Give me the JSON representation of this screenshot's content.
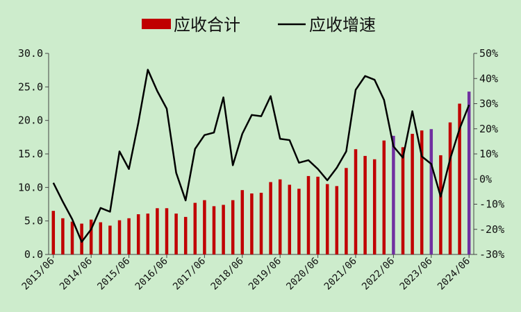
{
  "legend": {
    "bar_series": "应收合计",
    "line_series": "应收增速"
  },
  "colors": {
    "background": "#cdeccc",
    "bar": "#c00000",
    "bar_highlight": "#7030a0",
    "line": "#000000",
    "axis": "#444444"
  },
  "chart_data": {
    "type": "bar",
    "title": "",
    "xlabel": "",
    "ylabel": "",
    "ylim": [
      0,
      30
    ],
    "y_ticks": [
      "0.0",
      "5.0",
      "10.0",
      "15.0",
      "20.0",
      "25.0",
      "30.0"
    ],
    "y2lim": [
      -30,
      50
    ],
    "y2_ticks": [
      "-30%",
      "-20%",
      "-10%",
      "0%",
      "10%",
      "20%",
      "30%",
      "40%",
      "50%"
    ],
    "legend_position": "top-center",
    "grid": false,
    "x_tick_labels": [
      "2013/06",
      "2014/06",
      "2015/06",
      "2016/06",
      "2017/06",
      "2018/06",
      "2019/06",
      "2020/06",
      "2021/06",
      "2022/06",
      "2023/06",
      "2024/06"
    ],
    "categories": [
      "2013/06",
      "2013/09",
      "2013/12",
      "2014/03",
      "2014/06",
      "2014/09",
      "2014/12",
      "2015/03",
      "2015/06",
      "2015/09",
      "2015/12",
      "2016/03",
      "2016/06",
      "2016/09",
      "2016/12",
      "2017/03",
      "2017/06",
      "2017/09",
      "2017/12",
      "2018/03",
      "2018/06",
      "2018/09",
      "2018/12",
      "2019/03",
      "2019/06",
      "2019/09",
      "2019/12",
      "2020/03",
      "2020/06",
      "2020/09",
      "2020/12",
      "2021/03",
      "2021/06",
      "2021/09",
      "2021/12",
      "2022/03",
      "2022/06",
      "2022/09",
      "2022/12",
      "2023/03",
      "2023/06",
      "2023/09",
      "2023/12",
      "2024/03",
      "2024/06"
    ],
    "highlight_categories": [
      "2022/06",
      "2023/06",
      "2024/06"
    ],
    "series": [
      {
        "name": "应收合计",
        "type": "bar",
        "axis": "left",
        "values": [
          6.5,
          5.4,
          4.9,
          4.6,
          5.2,
          4.8,
          4.3,
          5.1,
          5.4,
          6.0,
          6.1,
          6.9,
          6.9,
          6.1,
          5.6,
          7.7,
          8.1,
          7.2,
          7.4,
          8.1,
          9.6,
          9.1,
          9.2,
          10.8,
          11.2,
          10.4,
          9.8,
          11.7,
          11.6,
          10.5,
          10.2,
          12.9,
          15.7,
          14.7,
          14.2,
          17.0,
          17.7,
          16.0,
          18.0,
          18.5,
          18.7,
          14.8,
          19.7,
          22.5,
          24.3
        ]
      },
      {
        "name": "应收增速",
        "type": "line",
        "axis": "right",
        "values": [
          -1.5,
          -9,
          -16,
          -25,
          -20,
          -11.5,
          -13,
          11,
          4,
          22.5,
          43.5,
          35,
          28,
          2.5,
          -8.5,
          12,
          17.5,
          18.5,
          32.5,
          5.5,
          18,
          25.5,
          25,
          33,
          16,
          15.5,
          6.5,
          7.5,
          4,
          -0.5,
          4.5,
          11,
          35.5,
          41,
          39.5,
          31.5,
          13,
          8.5,
          27,
          9,
          6,
          -7,
          8,
          20,
          29.5
        ]
      }
    ]
  }
}
